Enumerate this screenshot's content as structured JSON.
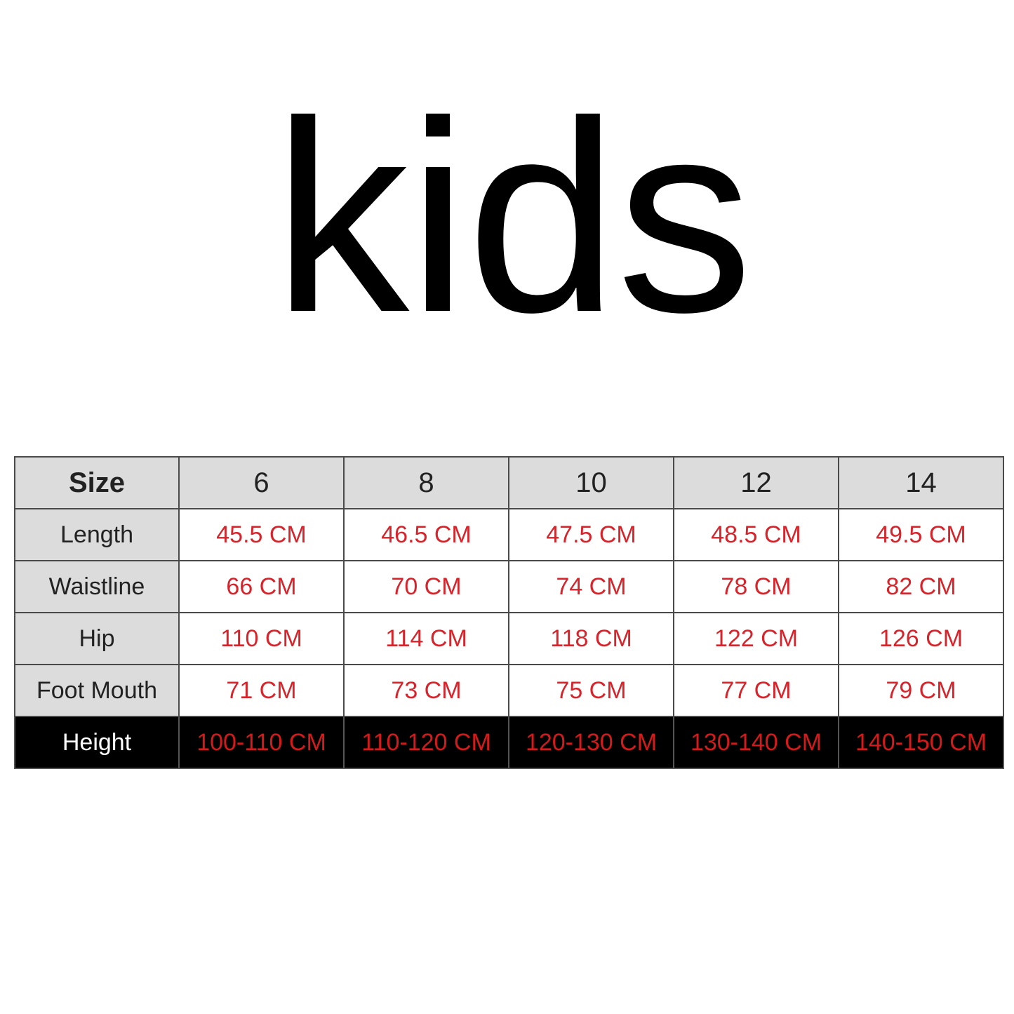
{
  "title": "kids",
  "table": {
    "header": {
      "label": "Size",
      "sizes": [
        "6",
        "8",
        "10",
        "12",
        "14"
      ]
    },
    "rows": [
      {
        "label": "Length",
        "values": [
          "45.5 CM",
          "46.5 CM",
          "47.5 CM",
          "48.5 CM",
          "49.5 CM"
        ]
      },
      {
        "label": "Waistline",
        "values": [
          "66 CM",
          "70 CM",
          "74 CM",
          "78 CM",
          "82 CM"
        ]
      },
      {
        "label": "Hip",
        "values": [
          "110 CM",
          "114 CM",
          "118 CM",
          "122 CM",
          "126 CM"
        ]
      },
      {
        "label": "Foot Mouth",
        "values": [
          "71 CM",
          "73 CM",
          "75 CM",
          "77 CM",
          "79 CM"
        ]
      },
      {
        "label": "Height",
        "values": [
          "100-110 CM",
          "110-120 CM",
          "120-130 CM",
          "130-140 CM",
          "140-150 CM"
        ]
      }
    ]
  },
  "colors": {
    "value_text": "#d8232a",
    "header_bg": "#dcdcdc",
    "height_row_bg": "#000000"
  }
}
